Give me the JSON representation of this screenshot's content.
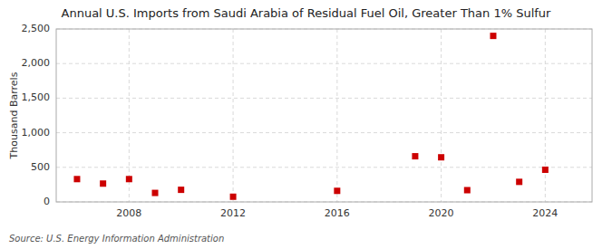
{
  "chart_data": {
    "type": "scatter",
    "title": "Annual U.S. Imports from Saudi Arabia of Residual Fuel Oil, Greater Than 1% Sulfur",
    "ylabel": "Thousand Barrels",
    "source": "Source: U.S. Energy Information Administration",
    "x": [
      2006,
      2007,
      2008,
      2009,
      2010,
      2012,
      2016,
      2019,
      2020,
      2021,
      2022,
      2023,
      2024
    ],
    "values": [
      330,
      265,
      330,
      130,
      175,
      75,
      160,
      660,
      645,
      170,
      2400,
      290,
      465
    ],
    "color": "#cc0000",
    "marker": "square",
    "xlim": [
      2005.2,
      2025.8
    ],
    "xticks": [
      2008,
      2012,
      2016,
      2020,
      2024
    ],
    "ylim": [
      0,
      2500
    ],
    "yticks": [
      0,
      500,
      {
        "value": 1000,
        "label": "1,000"
      },
      {
        "value": 1500,
        "label": "1,500"
      },
      {
        "value": 2000,
        "label": "2,000"
      },
      {
        "value": 2500,
        "label": "2,500"
      }
    ],
    "grid": true
  }
}
